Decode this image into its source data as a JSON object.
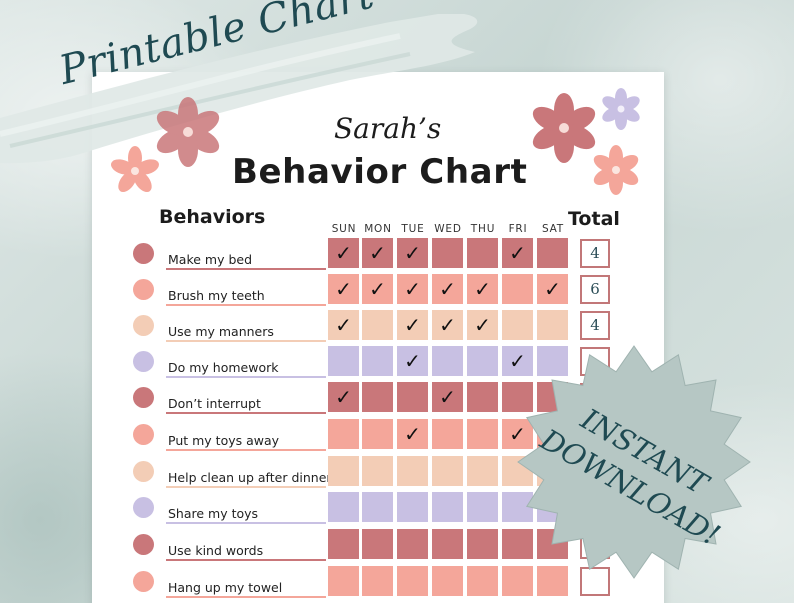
{
  "ribbon": {
    "text": "Printable Chart"
  },
  "header": {
    "subtitle": "Sarah’s",
    "title": "Behavior Chart"
  },
  "columns": {
    "behaviors_heading": "Behaviors",
    "total_heading": "Total",
    "days": [
      "SUN",
      "MON",
      "TUE",
      "WED",
      "THU",
      "FRI",
      "SAT"
    ]
  },
  "check_symbol": "✓",
  "rows": [
    {
      "label": "Make my bed",
      "color": "#c9777a",
      "checks": [
        1,
        1,
        1,
        0,
        0,
        1,
        0
      ],
      "total": "4"
    },
    {
      "label": "Brush my teeth",
      "color": "#f4a69a",
      "checks": [
        1,
        1,
        1,
        1,
        1,
        0,
        1
      ],
      "total": "6"
    },
    {
      "label": "Use my manners",
      "color": "#f3cdb6",
      "checks": [
        1,
        0,
        1,
        1,
        1,
        0,
        0
      ],
      "total": "4"
    },
    {
      "label": "Do my homework",
      "color": "#c8c0e3",
      "checks": [
        0,
        0,
        1,
        0,
        0,
        1,
        0
      ],
      "total": ""
    },
    {
      "label": "Don’t interrupt",
      "color": "#c9777a",
      "checks": [
        1,
        0,
        0,
        1,
        0,
        0,
        0
      ],
      "total": ""
    },
    {
      "label": "Put my toys away",
      "color": "#f4a69a",
      "checks": [
        0,
        0,
        1,
        0,
        0,
        1,
        1
      ],
      "total": ""
    },
    {
      "label": "Help clean up after dinner",
      "color": "#f3cdb6",
      "checks": [
        0,
        0,
        0,
        0,
        0,
        0,
        0
      ],
      "total": ""
    },
    {
      "label": "Share my toys",
      "color": "#c8c0e3",
      "checks": [
        0,
        0,
        0,
        0,
        0,
        0,
        0
      ],
      "total": ""
    },
    {
      "label": "Use kind words",
      "color": "#c9777a",
      "checks": [
        0,
        0,
        0,
        0,
        0,
        0,
        0
      ],
      "total": ""
    },
    {
      "label": "Hang up my towel",
      "color": "#f4a69a",
      "checks": [
        0,
        0,
        0,
        0,
        0,
        0,
        0
      ],
      "total": ""
    }
  ],
  "badge": {
    "line1": "INSTANT",
    "line2": "DOWNLOAD!"
  },
  "colors": {
    "dusty_rose": "#c9777a",
    "salmon": "#f4a69a",
    "peach": "#f3cdb6",
    "lavender": "#c8c0e3",
    "teal_text": "#1f4a52",
    "badge_fill": "#b6c7c4"
  }
}
